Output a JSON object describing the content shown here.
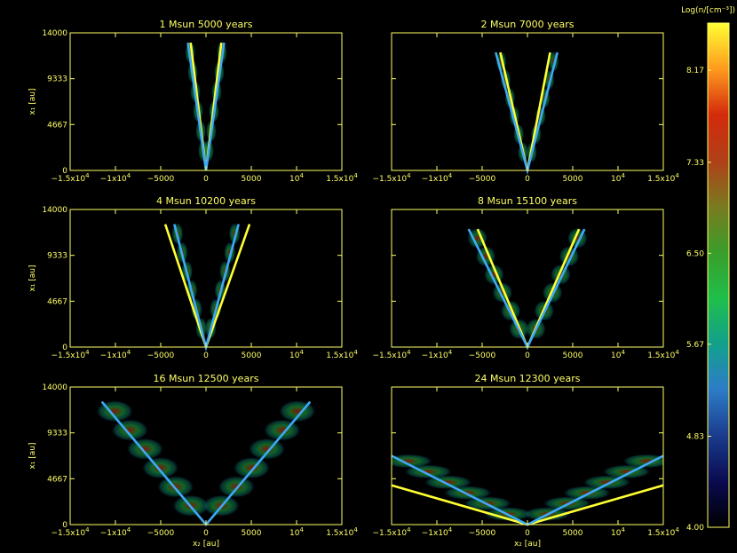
{
  "chart_data": [
    {
      "type": "line",
      "title": "1 Msun 5000 years",
      "xlabel": "",
      "ylabel": "x₁ [au]",
      "xlim": [
        -15000,
        15000
      ],
      "ylim": [
        0,
        14000
      ],
      "series": [
        {
          "color": "#ffff33",
          "x": [
            -1700,
            0,
            1700
          ],
          "y": [
            13000,
            0,
            13000
          ]
        },
        {
          "color": "#3fa9f5",
          "x": [
            -2000,
            0,
            2000
          ],
          "y": [
            13000,
            0,
            13000
          ]
        }
      ]
    },
    {
      "type": "line",
      "title": "2 Msun 7000 years",
      "xlabel": "",
      "ylabel": "",
      "xlim": [
        -15000,
        15000
      ],
      "ylim": [
        0,
        14000
      ],
      "series": [
        {
          "color": "#ffff33",
          "x": [
            -3000,
            0,
            2500
          ],
          "y": [
            12000,
            0,
            12000
          ]
        },
        {
          "color": "#3fa9f5",
          "x": [
            -3500,
            0,
            3300
          ],
          "y": [
            12000,
            0,
            12000
          ]
        }
      ]
    },
    {
      "type": "line",
      "title": "4 Msun 10200 years",
      "xlabel": "",
      "ylabel": "x₁ [au]",
      "xlim": [
        -15000,
        15000
      ],
      "ylim": [
        0,
        14000
      ],
      "series": [
        {
          "color": "#ffff33",
          "x": [
            -4500,
            0,
            4800
          ],
          "y": [
            12500,
            0,
            12500
          ]
        },
        {
          "color": "#3fa9f5",
          "x": [
            -3500,
            0,
            3600
          ],
          "y": [
            12500,
            0,
            12500
          ]
        }
      ]
    },
    {
      "type": "line",
      "title": "8 Msun 15100 years",
      "xlabel": "",
      "ylabel": "",
      "xlim": [
        -15000,
        15000
      ],
      "ylim": [
        0,
        14000
      ],
      "series": [
        {
          "color": "#ffff33",
          "x": [
            -5500,
            0,
            5700
          ],
          "y": [
            12000,
            0,
            12000
          ]
        },
        {
          "color": "#3fa9f5",
          "x": [
            -6500,
            0,
            6300
          ],
          "y": [
            12000,
            0,
            12000
          ]
        }
      ]
    },
    {
      "type": "line",
      "title": "16 Msun 12500 years",
      "xlabel": "x₂ [au]",
      "ylabel": "x₁ [au]",
      "xlim": [
        -15000,
        15000
      ],
      "ylim": [
        0,
        14000
      ],
      "series": [
        {
          "color": "#3fa9f5",
          "x": [
            -11500,
            0,
            11500
          ],
          "y": [
            12500,
            0,
            12500
          ]
        }
      ]
    },
    {
      "type": "line",
      "title": "24 Msun 12300 years",
      "xlabel": "x₂ [au]",
      "ylabel": "",
      "xlim": [
        -15000,
        15000
      ],
      "ylim": [
        0,
        14000
      ],
      "series": [
        {
          "color": "#ffff33",
          "x": [
            -15000,
            0,
            15000
          ],
          "y": [
            4000,
            0,
            4000
          ]
        },
        {
          "color": "#3fa9f5",
          "x": [
            -15000,
            0,
            15000
          ],
          "y": [
            7000,
            0,
            7000
          ]
        }
      ]
    }
  ],
  "axis_ticks": {
    "x": [
      {
        "v": -15000,
        "base": "−1.5x10",
        "exp": "4"
      },
      {
        "v": -10000,
        "base": "−1x10",
        "exp": "4"
      },
      {
        "v": -5000,
        "base": "−5000",
        "exp": ""
      },
      {
        "v": 0,
        "base": "0",
        "exp": ""
      },
      {
        "v": 5000,
        "base": "5000",
        "exp": ""
      },
      {
        "v": 10000,
        "base": "10",
        "exp": "4"
      },
      {
        "v": 15000,
        "base": "1.5x10",
        "exp": "4"
      }
    ],
    "y": [
      {
        "v": 0,
        "label": "0"
      },
      {
        "v": 4667,
        "label": "4667"
      },
      {
        "v": 9333,
        "label": "9333"
      },
      {
        "v": 14000,
        "label": "14000"
      }
    ]
  },
  "colorbar": {
    "title": "Log(n/[cm⁻³])",
    "min": 4.0,
    "max": 8.6,
    "ticks": [
      "4.00",
      "4.83",
      "5.67",
      "6.50",
      "7.33",
      "8.17"
    ],
    "colors": [
      "#000000",
      "#0a0a50",
      "#1a3c8c",
      "#2d7cc8",
      "#12a08c",
      "#1fbf4a",
      "#3a9e2a",
      "#7a7a20",
      "#b04018",
      "#d42a0c",
      "#ff9a1e",
      "#ffff33"
    ]
  }
}
